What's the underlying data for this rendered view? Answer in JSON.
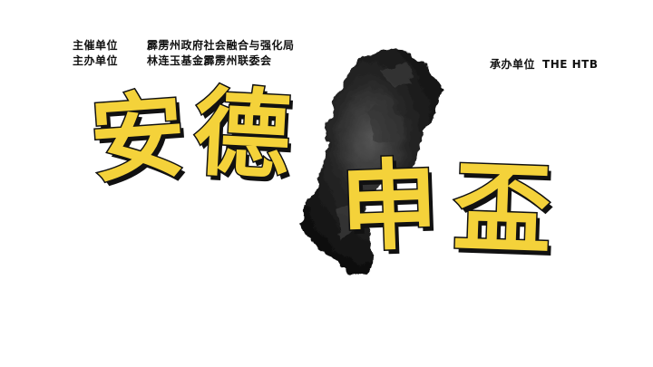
{
  "credits": {
    "host": {
      "role": "主催单位",
      "name": "霹雳州政府社会融合与强化局"
    },
    "co_host": {
      "role": "主办单位",
      "name": "林连玉基金霹雳州联委会"
    },
    "organizer": {
      "role": "承办单位",
      "name": "THE HTB"
    }
  },
  "title": {
    "chars": [
      "安",
      "德",
      "申",
      "盃"
    ]
  },
  "colors": {
    "title_fill": "#f4d23a",
    "title_outline": "#111111",
    "map_ink": "#1a1a1a",
    "background": "#ffffff"
  },
  "decoration": {
    "map_icon": "perak-state-map-icon"
  }
}
